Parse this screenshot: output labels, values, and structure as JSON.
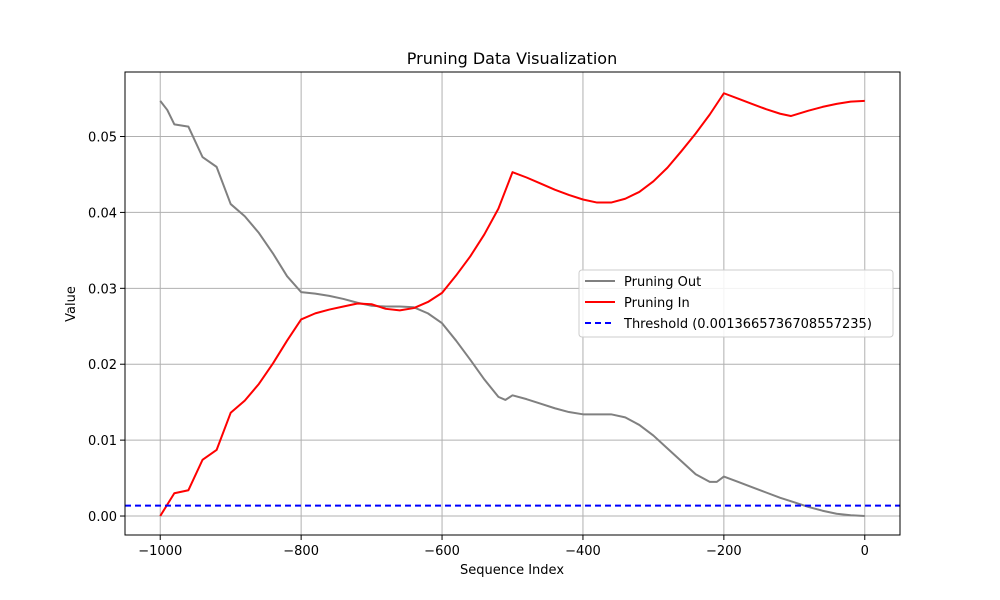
{
  "chart_data": {
    "type": "line",
    "title": "Pruning Data Visualization",
    "xlabel": "Sequence Index",
    "ylabel": "Value",
    "xlim": [
      -1050,
      50
    ],
    "ylim": [
      -0.0025,
      0.0585
    ],
    "x_ticks": [
      -1000,
      -800,
      -600,
      -400,
      -200,
      0
    ],
    "x_tick_labels": [
      "−1000",
      "−800",
      "−600",
      "−400",
      "−200",
      "0"
    ],
    "y_ticks": [
      0.0,
      0.01,
      0.02,
      0.03,
      0.04,
      0.05
    ],
    "y_tick_labels": [
      "0.00",
      "0.01",
      "0.02",
      "0.03",
      "0.04",
      "0.05"
    ],
    "grid": true,
    "legend_position": "center-right",
    "series": [
      {
        "name": "Pruning Out",
        "color": "#808080",
        "style": "solid",
        "x": [
          -1000,
          -990,
          -980,
          -960,
          -940,
          -920,
          -900,
          -880,
          -860,
          -840,
          -820,
          -800,
          -780,
          -760,
          -740,
          -720,
          -700,
          -680,
          -660,
          -640,
          -620,
          -600,
          -580,
          -560,
          -540,
          -520,
          -510,
          -500,
          -480,
          -460,
          -440,
          -420,
          -400,
          -380,
          -360,
          -340,
          -320,
          -300,
          -280,
          -260,
          -240,
          -220,
          -210,
          -200,
          -180,
          -160,
          -140,
          -120,
          -100,
          -80,
          -60,
          -40,
          -20,
          0
        ],
        "y": [
          0.0547,
          0.0535,
          0.0516,
          0.0513,
          0.0473,
          0.046,
          0.0411,
          0.0395,
          0.0373,
          0.0346,
          0.0316,
          0.0295,
          0.0293,
          0.029,
          0.0286,
          0.0281,
          0.0277,
          0.0276,
          0.0276,
          0.0275,
          0.0267,
          0.0254,
          0.0231,
          0.0206,
          0.018,
          0.0157,
          0.0153,
          0.0159,
          0.0154,
          0.0148,
          0.0142,
          0.0137,
          0.0134,
          0.0134,
          0.0134,
          0.013,
          0.012,
          0.0106,
          0.0089,
          0.0072,
          0.0055,
          0.0045,
          0.0045,
          0.0052,
          0.0045,
          0.0038,
          0.0031,
          0.0024,
          0.0018,
          0.0012,
          0.0007,
          0.0003,
          0.0001,
          0.0
        ]
      },
      {
        "name": "Pruning In",
        "color": "#ff0000",
        "style": "solid",
        "x": [
          -1000,
          -990,
          -980,
          -960,
          -940,
          -920,
          -900,
          -880,
          -860,
          -840,
          -820,
          -800,
          -780,
          -760,
          -740,
          -720,
          -700,
          -680,
          -660,
          -640,
          -620,
          -600,
          -580,
          -560,
          -540,
          -520,
          -500,
          -480,
          -460,
          -440,
          -420,
          -400,
          -380,
          -360,
          -340,
          -320,
          -300,
          -280,
          -260,
          -240,
          -220,
          -200,
          -180,
          -160,
          -140,
          -120,
          -105,
          -80,
          -60,
          -40,
          -20,
          0
        ],
        "y": [
          0.0,
          0.0015,
          0.003,
          0.0034,
          0.0074,
          0.0087,
          0.0136,
          0.0152,
          0.0174,
          0.0201,
          0.0231,
          0.0259,
          0.0267,
          0.0272,
          0.0276,
          0.028,
          0.0279,
          0.0273,
          0.0271,
          0.0274,
          0.0282,
          0.0294,
          0.0317,
          0.0342,
          0.0371,
          0.0405,
          0.0453,
          0.0446,
          0.0438,
          0.043,
          0.0423,
          0.0417,
          0.0413,
          0.0413,
          0.0418,
          0.0427,
          0.0441,
          0.0459,
          0.0481,
          0.0504,
          0.0529,
          0.0557,
          0.055,
          0.0543,
          0.0536,
          0.053,
          0.0527,
          0.0534,
          0.0539,
          0.0543,
          0.0546,
          0.0547
        ]
      },
      {
        "name": "Threshold (0.0013665736708557235)",
        "color": "#0000ff",
        "style": "dashed",
        "x": [
          -1050,
          50
        ],
        "y": [
          0.0013665736708557235,
          0.0013665736708557235
        ]
      }
    ]
  }
}
